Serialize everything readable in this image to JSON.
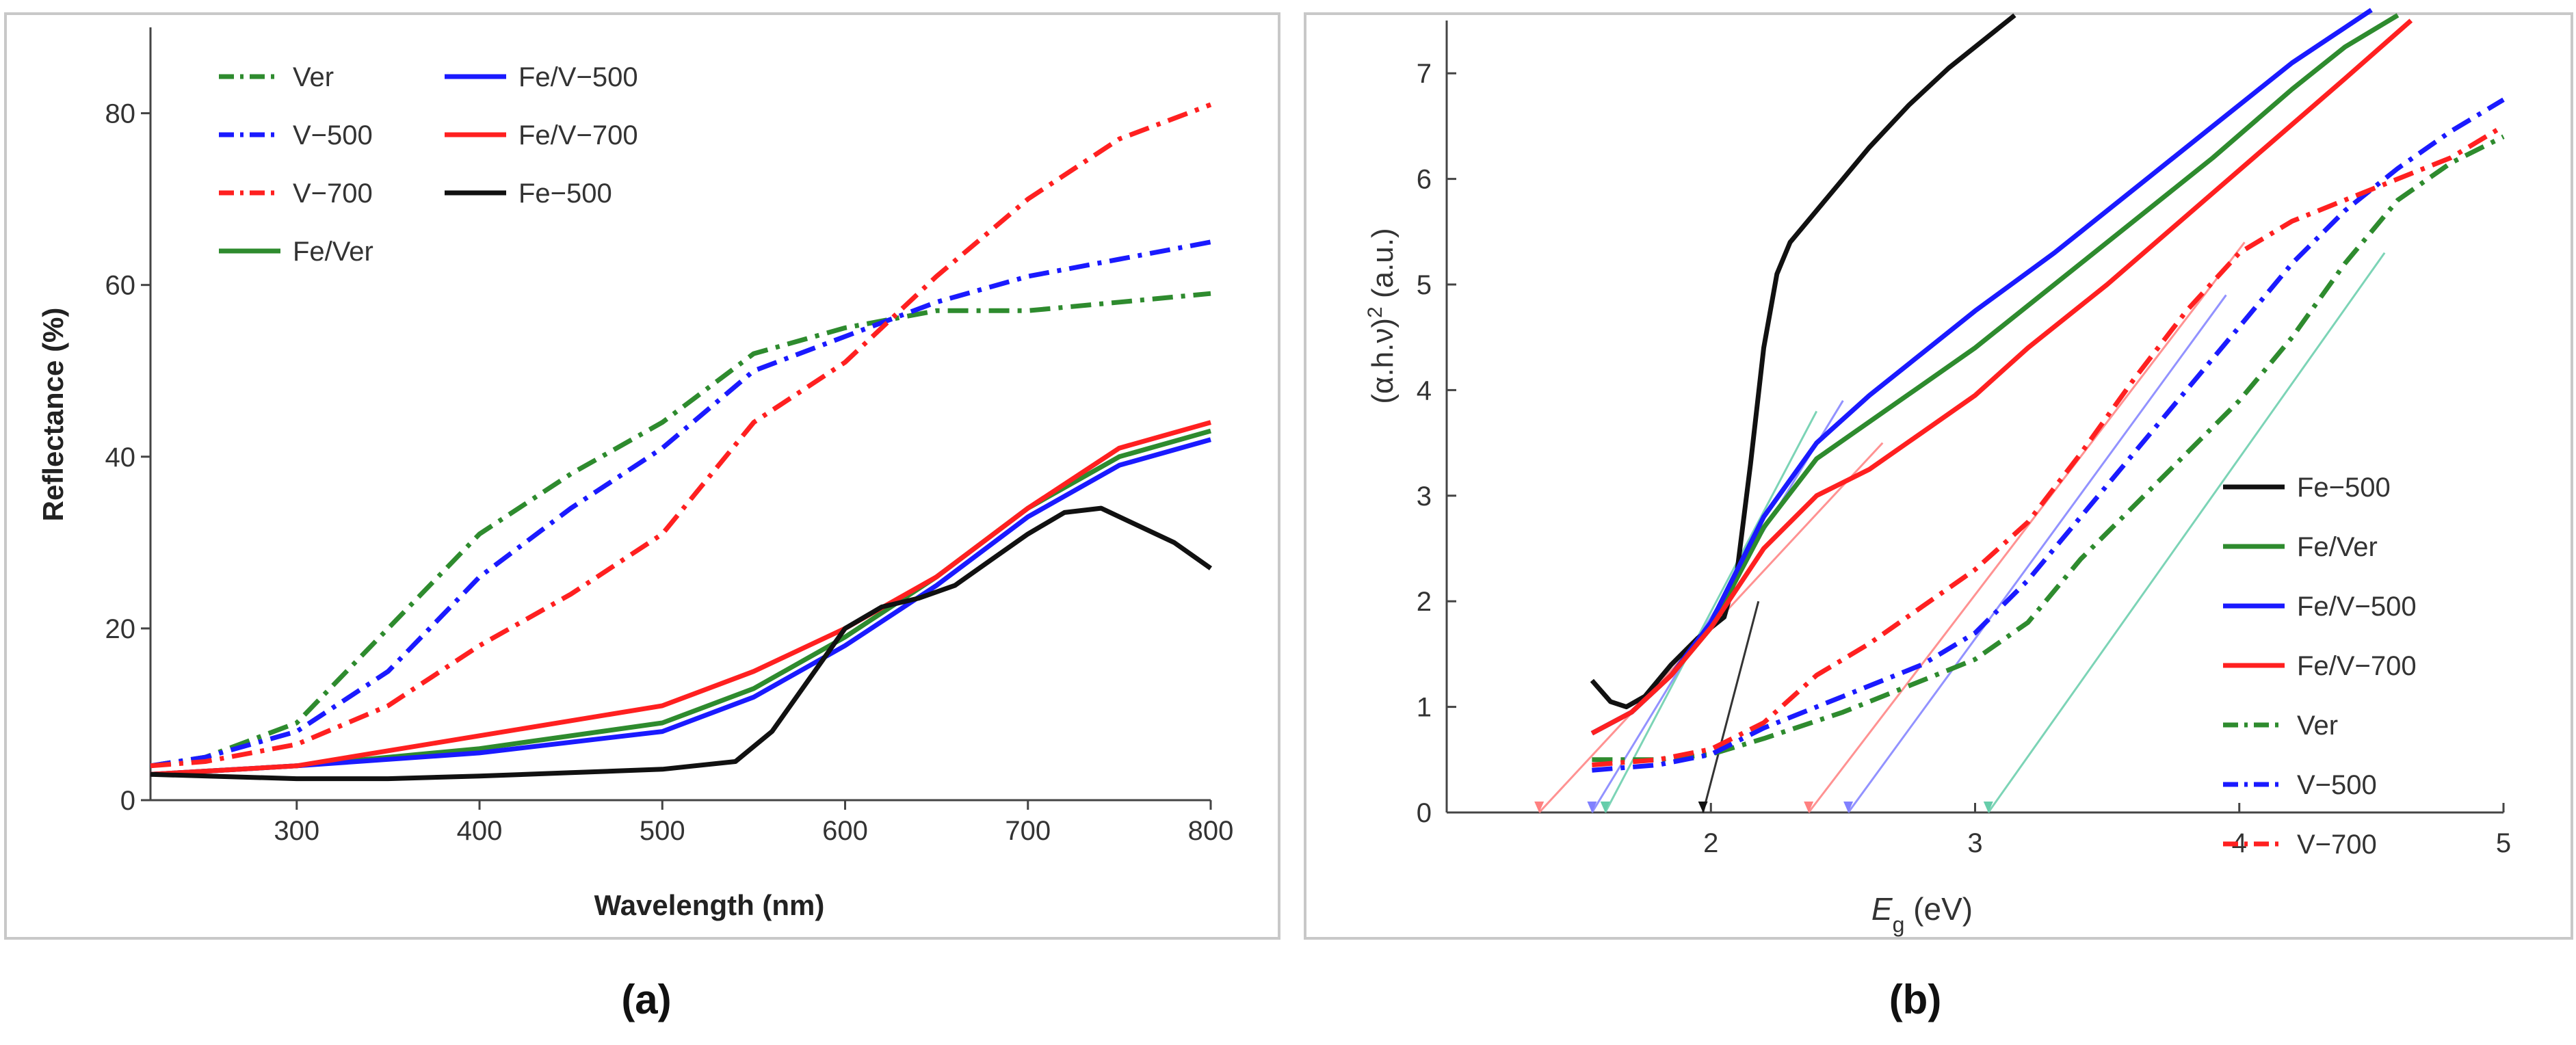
{
  "chart_data": [
    {
      "type": "line",
      "panel_caption": "(a)",
      "title": "",
      "xlabel": "Wavelength (nm)",
      "ylabel": "Reflectance (%)",
      "xlim": [
        220,
        800
      ],
      "ylim": [
        0,
        90
      ],
      "xticks": [
        "300",
        "400",
        "500",
        "600",
        "700",
        "800"
      ],
      "yticks": [
        "0",
        "20",
        "40",
        "60",
        "80"
      ],
      "legend_position": "top-left",
      "series": [
        {
          "name": "Ver",
          "color": "#2e8b2e",
          "dash": "dashdot",
          "x": [
            220,
            250,
            300,
            350,
            400,
            450,
            500,
            550,
            600,
            650,
            700,
            750,
            800
          ],
          "y": [
            4,
            5,
            9,
            20,
            31,
            38,
            44,
            52,
            55,
            57,
            57,
            58,
            59
          ]
        },
        {
          "name": "V−500",
          "color": "#1a1aff",
          "dash": "dashdot",
          "x": [
            220,
            250,
            300,
            350,
            400,
            450,
            500,
            550,
            600,
            650,
            700,
            750,
            800
          ],
          "y": [
            4,
            5,
            8,
            15,
            26,
            34,
            41,
            50,
            54,
            58,
            61,
            63,
            65
          ]
        },
        {
          "name": "V−700",
          "color": "#ff2020",
          "dash": "dashdot",
          "x": [
            220,
            250,
            300,
            350,
            400,
            450,
            500,
            550,
            600,
            650,
            700,
            750,
            800
          ],
          "y": [
            4,
            4.5,
            6.5,
            11,
            18,
            24,
            31,
            44,
            51,
            61,
            70,
            77,
            81
          ]
        },
        {
          "name": "Fe/Ver",
          "color": "#2e8b2e",
          "dash": "solid",
          "x": [
            220,
            300,
            400,
            500,
            550,
            600,
            650,
            700,
            750,
            800
          ],
          "y": [
            3,
            4,
            6,
            9,
            13,
            19,
            26,
            34,
            40,
            43
          ]
        },
        {
          "name": "Fe/V−500",
          "color": "#1a1aff",
          "dash": "solid",
          "x": [
            220,
            300,
            400,
            500,
            550,
            600,
            650,
            700,
            750,
            800
          ],
          "y": [
            3,
            4,
            5.5,
            8,
            12,
            18,
            25,
            33,
            39,
            42
          ]
        },
        {
          "name": "Fe/V−700",
          "color": "#ff2020",
          "dash": "solid",
          "x": [
            220,
            300,
            400,
            500,
            550,
            600,
            650,
            700,
            750,
            800
          ],
          "y": [
            3,
            4,
            7.5,
            11,
            15,
            20,
            26,
            34,
            41,
            44
          ]
        },
        {
          "name": "Fe−500",
          "color": "#111111",
          "dash": "solid",
          "x": [
            220,
            300,
            350,
            400,
            450,
            500,
            540,
            560,
            580,
            600,
            620,
            640,
            660,
            680,
            700,
            720,
            740,
            760,
            780,
            800
          ],
          "y": [
            3,
            2.5,
            2.5,
            2.8,
            3.2,
            3.6,
            4.5,
            8,
            14,
            20,
            22.5,
            23.5,
            25,
            28,
            31,
            33.5,
            34,
            32,
            30,
            27
          ]
        }
      ]
    },
    {
      "type": "line",
      "panel_caption": "(b)",
      "title": "",
      "xlabel_main": "E",
      "xlabel_sub": "g",
      "xlabel_unit": " (eV)",
      "ylabel_pre": "(α.h.ν)",
      "ylabel_sup": "2",
      "ylabel_unit": " (a.u.)",
      "xlim": [
        1.0,
        5.0
      ],
      "ylim": [
        0,
        7.5
      ],
      "xticks": [
        "2",
        "3",
        "4",
        "5"
      ],
      "yticks": [
        "0",
        "1",
        "2",
        "3",
        "4",
        "5",
        "6",
        "7"
      ],
      "legend_position": "bottom-right",
      "series": [
        {
          "name": "Fe−500",
          "color": "#111111",
          "dash": "solid",
          "x": [
            1.55,
            1.62,
            1.68,
            1.75,
            1.85,
            1.95,
            2.05,
            2.1,
            2.15,
            2.2,
            2.25,
            2.3,
            2.4,
            2.5,
            2.6,
            2.75,
            2.9,
            3.0,
            3.1,
            3.15
          ],
          "y": [
            1.25,
            1.05,
            1.0,
            1.1,
            1.4,
            1.65,
            1.85,
            2.3,
            3.3,
            4.4,
            5.1,
            5.4,
            5.7,
            6.0,
            6.3,
            6.7,
            7.05,
            7.25,
            7.45,
            7.55
          ]
        },
        {
          "name": "Fe/Ver",
          "color": "#2e8b2e",
          "dash": "solid",
          "x": [
            1.55,
            1.7,
            1.85,
            2.0,
            2.2,
            2.4,
            2.6,
            2.8,
            3.0,
            3.3,
            3.6,
            3.9,
            4.2,
            4.4,
            4.6
          ],
          "y": [
            0.75,
            0.95,
            1.3,
            1.75,
            2.7,
            3.35,
            3.7,
            4.05,
            4.4,
            5.0,
            5.6,
            6.2,
            6.85,
            7.25,
            7.55
          ]
        },
        {
          "name": "Fe/V−500",
          "color": "#1a1aff",
          "dash": "solid",
          "x": [
            1.55,
            1.7,
            1.85,
            2.0,
            2.2,
            2.4,
            2.6,
            2.8,
            3.0,
            3.3,
            3.6,
            3.9,
            4.2,
            4.35,
            4.5
          ],
          "y": [
            0.75,
            0.95,
            1.3,
            1.8,
            2.8,
            3.5,
            3.95,
            4.35,
            4.75,
            5.3,
            5.9,
            6.5,
            7.1,
            7.35,
            7.6
          ]
        },
        {
          "name": "Fe/V−700",
          "color": "#ff2020",
          "dash": "solid",
          "x": [
            1.55,
            1.7,
            1.85,
            2.0,
            2.2,
            2.4,
            2.6,
            2.8,
            3.0,
            3.2,
            3.5,
            3.8,
            4.1,
            4.4,
            4.65
          ],
          "y": [
            0.75,
            0.95,
            1.3,
            1.75,
            2.5,
            3.0,
            3.25,
            3.6,
            3.95,
            4.4,
            5.0,
            5.65,
            6.3,
            6.95,
            7.5
          ]
        },
        {
          "name": "Ver",
          "color": "#2e8b2e",
          "dash": "dashdot",
          "x": [
            1.55,
            1.8,
            2.0,
            2.2,
            2.5,
            2.8,
            3.0,
            3.2,
            3.4,
            3.6,
            3.8,
            4.0,
            4.2,
            4.4,
            4.6,
            4.8,
            5.0
          ],
          "y": [
            0.5,
            0.5,
            0.55,
            0.7,
            0.95,
            1.25,
            1.45,
            1.8,
            2.4,
            2.9,
            3.4,
            3.9,
            4.5,
            5.2,
            5.8,
            6.15,
            6.4
          ]
        },
        {
          "name": "V−500",
          "color": "#1a1aff",
          "dash": "dashdot",
          "x": [
            1.55,
            1.8,
            2.0,
            2.2,
            2.5,
            2.8,
            3.0,
            3.2,
            3.4,
            3.6,
            3.8,
            4.0,
            4.2,
            4.4,
            4.6,
            4.8,
            5.0
          ],
          "y": [
            0.4,
            0.45,
            0.55,
            0.8,
            1.1,
            1.4,
            1.7,
            2.2,
            2.8,
            3.4,
            4.0,
            4.6,
            5.2,
            5.7,
            6.1,
            6.45,
            6.75
          ]
        },
        {
          "name": "V−700",
          "color": "#ff2020",
          "dash": "dashdot",
          "x": [
            1.55,
            1.8,
            2.0,
            2.2,
            2.4,
            2.6,
            2.8,
            3.0,
            3.2,
            3.4,
            3.6,
            3.8,
            4.0,
            4.2,
            4.5,
            4.8,
            5.0
          ],
          "y": [
            0.45,
            0.5,
            0.6,
            0.85,
            1.3,
            1.6,
            1.95,
            2.3,
            2.75,
            3.4,
            4.1,
            4.75,
            5.3,
            5.6,
            5.9,
            6.2,
            6.5
          ]
        }
      ],
      "tangent_lines": [
        {
          "series": "Fe−500",
          "color": "#111111",
          "x": [
            1.97,
            2.18
          ],
          "y": [
            0,
            2.0
          ]
        },
        {
          "series": "Fe/Ver",
          "color": "#66cdaa",
          "x": [
            1.6,
            2.4
          ],
          "y": [
            0,
            3.8
          ]
        },
        {
          "series": "Fe/V−500",
          "color": "#8080ff",
          "x": [
            1.55,
            2.5
          ],
          "y": [
            0,
            3.9
          ]
        },
        {
          "series": "Fe/V−700",
          "color": "#ff8080",
          "x": [
            1.35,
            2.65
          ],
          "y": [
            0,
            3.5
          ]
        },
        {
          "series": "Ver",
          "color": "#66cdaa",
          "x": [
            3.05,
            4.55
          ],
          "y": [
            0,
            5.3
          ]
        },
        {
          "series": "V−500",
          "color": "#8080ff",
          "x": [
            2.52,
            3.95
          ],
          "y": [
            0,
            4.9
          ]
        },
        {
          "series": "V−700",
          "color": "#ff8080",
          "x": [
            2.37,
            4.02
          ],
          "y": [
            0,
            5.4
          ]
        }
      ]
    }
  ]
}
